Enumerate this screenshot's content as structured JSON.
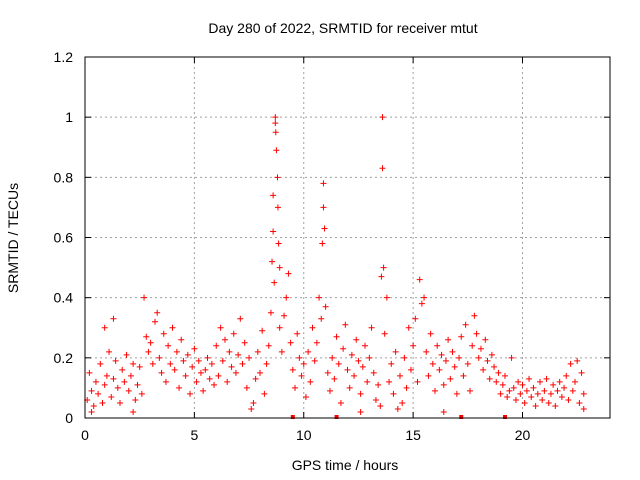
{
  "chart_data": {
    "type": "scatter",
    "title": "Day 280 of 2022, SRMTID for receiver mtut",
    "xlabel": "GPS time / hours",
    "ylabel": "SRMTID / TECUs",
    "xlim": [
      0,
      24
    ],
    "ylim": [
      0,
      1.2
    ],
    "xticks": [
      0,
      5,
      10,
      15,
      20
    ],
    "xtick_labels": [
      "0",
      "5",
      "10",
      "15",
      "20"
    ],
    "yticks": [
      0,
      0.2,
      0.4,
      0.6,
      0.8,
      1.0,
      1.2
    ],
    "ytick_labels": [
      "0",
      "0.2",
      "0.4",
      "0.6",
      "0.8",
      "1",
      "1.2"
    ],
    "grid": true,
    "marker": "+",
    "series": [
      {
        "name": "SRMTID",
        "color": "#ff0000",
        "points": [
          [
            0.1,
            0.06
          ],
          [
            0.2,
            0.15
          ],
          [
            0.3,
            0.09
          ],
          [
            0.4,
            0.04
          ],
          [
            0.5,
            0.12
          ],
          [
            0.6,
            0.08
          ],
          [
            0.7,
            0.18
          ],
          [
            0.8,
            0.05
          ],
          [
            0.9,
            0.11
          ],
          [
            1.0,
            0.14
          ],
          [
            1.1,
            0.22
          ],
          [
            1.2,
            0.07
          ],
          [
            1.3,
            0.13
          ],
          [
            1.4,
            0.19
          ],
          [
            1.5,
            0.1
          ],
          [
            1.6,
            0.05
          ],
          [
            1.7,
            0.16
          ],
          [
            1.8,
            0.12
          ],
          [
            1.9,
            0.21
          ],
          [
            2.0,
            0.09
          ],
          [
            2.1,
            0.14
          ],
          [
            2.2,
            0.18
          ],
          [
            2.3,
            0.06
          ],
          [
            2.4,
            0.11
          ],
          [
            2.5,
            0.17
          ],
          [
            2.6,
            0.08
          ],
          [
            0.9,
            0.3
          ],
          [
            1.3,
            0.33
          ],
          [
            0.3,
            0.02
          ],
          [
            2.2,
            0.02
          ],
          [
            2.7,
            0.4
          ],
          [
            2.8,
            0.27
          ],
          [
            2.9,
            0.22
          ],
          [
            3.0,
            0.25
          ],
          [
            3.1,
            0.18
          ],
          [
            3.2,
            0.32
          ],
          [
            3.3,
            0.35
          ],
          [
            3.4,
            0.2
          ],
          [
            3.5,
            0.15
          ],
          [
            3.6,
            0.28
          ],
          [
            3.7,
            0.12
          ],
          [
            3.8,
            0.24
          ],
          [
            3.9,
            0.18
          ],
          [
            4.0,
            0.3
          ],
          [
            4.1,
            0.16
          ],
          [
            4.2,
            0.22
          ],
          [
            4.3,
            0.1
          ],
          [
            4.4,
            0.26
          ],
          [
            4.5,
            0.19
          ],
          [
            4.6,
            0.14
          ],
          [
            4.7,
            0.21
          ],
          [
            4.8,
            0.08
          ],
          [
            4.9,
            0.17
          ],
          [
            5.0,
            0.23
          ],
          [
            5.1,
            0.12
          ],
          [
            5.2,
            0.19
          ],
          [
            5.3,
            0.15
          ],
          [
            5.4,
            0.09
          ],
          [
            5.5,
            0.16
          ],
          [
            5.6,
            0.2
          ],
          [
            5.7,
            0.13
          ],
          [
            5.8,
            0.18
          ],
          [
            5.9,
            0.11
          ],
          [
            6.0,
            0.24
          ],
          [
            6.1,
            0.14
          ],
          [
            6.2,
            0.3
          ],
          [
            6.3,
            0.19
          ],
          [
            6.4,
            0.26
          ],
          [
            6.5,
            0.12
          ],
          [
            6.6,
            0.22
          ],
          [
            6.7,
            0.17
          ],
          [
            6.8,
            0.28
          ],
          [
            6.9,
            0.15
          ],
          [
            7.0,
            0.21
          ],
          [
            7.1,
            0.33
          ],
          [
            7.2,
            0.18
          ],
          [
            7.3,
            0.25
          ],
          [
            7.4,
            0.1
          ],
          [
            7.5,
            0.2
          ],
          [
            7.6,
            0.03
          ],
          [
            7.7,
            0.05
          ],
          [
            7.8,
            0.13
          ],
          [
            7.9,
            0.22
          ],
          [
            8.0,
            0.15
          ],
          [
            8.1,
            0.29
          ],
          [
            8.2,
            0.08
          ],
          [
            8.3,
            0.18
          ],
          [
            8.4,
            0.24
          ],
          [
            8.5,
            0.35
          ],
          [
            8.55,
            0.52
          ],
          [
            8.6,
            0.74
          ],
          [
            8.6,
            0.62
          ],
          [
            8.65,
            0.45
          ],
          [
            8.7,
            1.0
          ],
          [
            8.7,
            0.98
          ],
          [
            8.72,
            0.95
          ],
          [
            8.75,
            0.89
          ],
          [
            8.8,
            0.8
          ],
          [
            8.82,
            0.7
          ],
          [
            8.85,
            0.58
          ],
          [
            8.9,
            0.5
          ],
          [
            8.9,
            0.3
          ],
          [
            9.0,
            0.22
          ],
          [
            9.1,
            0.34
          ],
          [
            9.2,
            0.4
          ],
          [
            9.3,
            0.48
          ],
          [
            9.4,
            0.25
          ],
          [
            9.5,
            0.16
          ],
          [
            9.6,
            0.1
          ],
          [
            9.7,
            0.28
          ],
          [
            9.8,
            0.2
          ],
          [
            9.9,
            0.14
          ],
          [
            10.0,
            0.18
          ],
          [
            10.1,
            0.07
          ],
          [
            10.2,
            0.22
          ],
          [
            10.3,
            0.12
          ],
          [
            10.4,
            0.3
          ],
          [
            10.5,
            0.19
          ],
          [
            10.6,
            0.25
          ],
          [
            10.7,
            0.4
          ],
          [
            10.8,
            0.33
          ],
          [
            10.85,
            0.58
          ],
          [
            10.9,
            0.7
          ],
          [
            10.9,
            0.78
          ],
          [
            10.95,
            0.63
          ],
          [
            11.0,
            0.37
          ],
          [
            11.1,
            0.15
          ],
          [
            11.2,
            0.09
          ],
          [
            11.3,
            0.2
          ],
          [
            11.4,
            0.13
          ],
          [
            11.5,
            0.27
          ],
          [
            11.6,
            0.18
          ],
          [
            11.7,
            0.05
          ],
          [
            11.8,
            0.23
          ],
          [
            11.9,
            0.31
          ],
          [
            12.0,
            0.16
          ],
          [
            12.1,
            0.1
          ],
          [
            12.2,
            0.21
          ],
          [
            12.3,
            0.14
          ],
          [
            12.4,
            0.26
          ],
          [
            12.5,
            0.19
          ],
          [
            12.6,
            0.08
          ],
          [
            12.7,
            0.17
          ],
          [
            12.8,
            0.24
          ],
          [
            12.9,
            0.12
          ],
          [
            13.0,
            0.2
          ],
          [
            13.1,
            0.3
          ],
          [
            13.2,
            0.15
          ],
          [
            13.3,
            0.06
          ],
          [
            13.4,
            0.11
          ],
          [
            13.5,
            0.04
          ],
          [
            13.55,
            0.47
          ],
          [
            13.6,
            0.83
          ],
          [
            13.6,
            1.0
          ],
          [
            13.65,
            0.5
          ],
          [
            13.7,
            0.28
          ],
          [
            13.8,
            0.4
          ],
          [
            13.9,
            0.12
          ],
          [
            14.0,
            0.18
          ],
          [
            14.1,
            0.08
          ],
          [
            14.2,
            0.22
          ],
          [
            14.3,
            0.03
          ],
          [
            14.4,
            0.14
          ],
          [
            14.5,
            0.05
          ],
          [
            14.6,
            0.2
          ],
          [
            14.7,
            0.1
          ],
          [
            14.8,
            0.3
          ],
          [
            14.9,
            0.16
          ],
          [
            15.0,
            0.24
          ],
          [
            15.1,
            0.33
          ],
          [
            15.2,
            0.12
          ],
          [
            15.3,
            0.46
          ],
          [
            15.4,
            0.38
          ],
          [
            15.5,
            0.4
          ],
          [
            15.6,
            0.22
          ],
          [
            15.7,
            0.14
          ],
          [
            15.8,
            0.28
          ],
          [
            15.9,
            0.18
          ],
          [
            16.0,
            0.09
          ],
          [
            16.1,
            0.24
          ],
          [
            16.2,
            0.16
          ],
          [
            16.3,
            0.21
          ],
          [
            16.4,
            0.11
          ],
          [
            16.5,
            0.19
          ],
          [
            16.6,
            0.26
          ],
          [
            16.7,
            0.13
          ],
          [
            16.8,
            0.22
          ],
          [
            16.9,
            0.17
          ],
          [
            17.0,
            0.08
          ],
          [
            17.1,
            0.2
          ],
          [
            17.2,
            0.27
          ],
          [
            17.3,
            0.14
          ],
          [
            17.4,
            0.31
          ],
          [
            17.5,
            0.18
          ],
          [
            17.6,
            0.09
          ],
          [
            17.7,
            0.24
          ],
          [
            17.8,
            0.34
          ],
          [
            17.9,
            0.28
          ],
          [
            18.0,
            0.2
          ],
          [
            18.1,
            0.23
          ],
          [
            18.2,
            0.16
          ],
          [
            18.3,
            0.26
          ],
          [
            18.4,
            0.19
          ],
          [
            18.5,
            0.13
          ],
          [
            18.6,
            0.21
          ],
          [
            18.7,
            0.17
          ],
          [
            18.8,
            0.12
          ],
          [
            18.9,
            0.15
          ],
          [
            19.0,
            0.08
          ],
          [
            19.1,
            0.11
          ],
          [
            19.2,
            0.14
          ],
          [
            19.3,
            0.07
          ],
          [
            19.4,
            0.09
          ],
          [
            19.5,
            0.2
          ],
          [
            19.6,
            0.1
          ],
          [
            19.7,
            0.06
          ],
          [
            19.8,
            0.12
          ],
          [
            19.9,
            0.08
          ],
          [
            20.0,
            0.11
          ],
          [
            20.1,
            0.05
          ],
          [
            20.2,
            0.09
          ],
          [
            20.3,
            0.13
          ],
          [
            20.4,
            0.07
          ],
          [
            20.5,
            0.1
          ],
          [
            20.6,
            0.04
          ],
          [
            20.7,
            0.08
          ],
          [
            20.8,
            0.12
          ],
          [
            20.9,
            0.06
          ],
          [
            21.0,
            0.09
          ],
          [
            21.1,
            0.13
          ],
          [
            21.2,
            0.05
          ],
          [
            21.3,
            0.08
          ],
          [
            21.4,
            0.11
          ],
          [
            21.5,
            0.04
          ],
          [
            21.6,
            0.09
          ],
          [
            21.7,
            0.12
          ],
          [
            21.8,
            0.07
          ],
          [
            21.9,
            0.1
          ],
          [
            22.0,
            0.14
          ],
          [
            22.1,
            0.06
          ],
          [
            22.2,
            0.18
          ],
          [
            22.3,
            0.09
          ],
          [
            22.4,
            0.12
          ],
          [
            22.5,
            0.19
          ],
          [
            22.6,
            0.05
          ],
          [
            22.7,
            0.15
          ],
          [
            22.8,
            0.03
          ],
          [
            22.8,
            0.08
          ],
          [
            16.4,
            0.02
          ],
          [
            12.6,
            0.02
          ]
        ]
      }
    ],
    "axis_markers_x": [
      9.5,
      11.5,
      17.2,
      19.2
    ]
  }
}
